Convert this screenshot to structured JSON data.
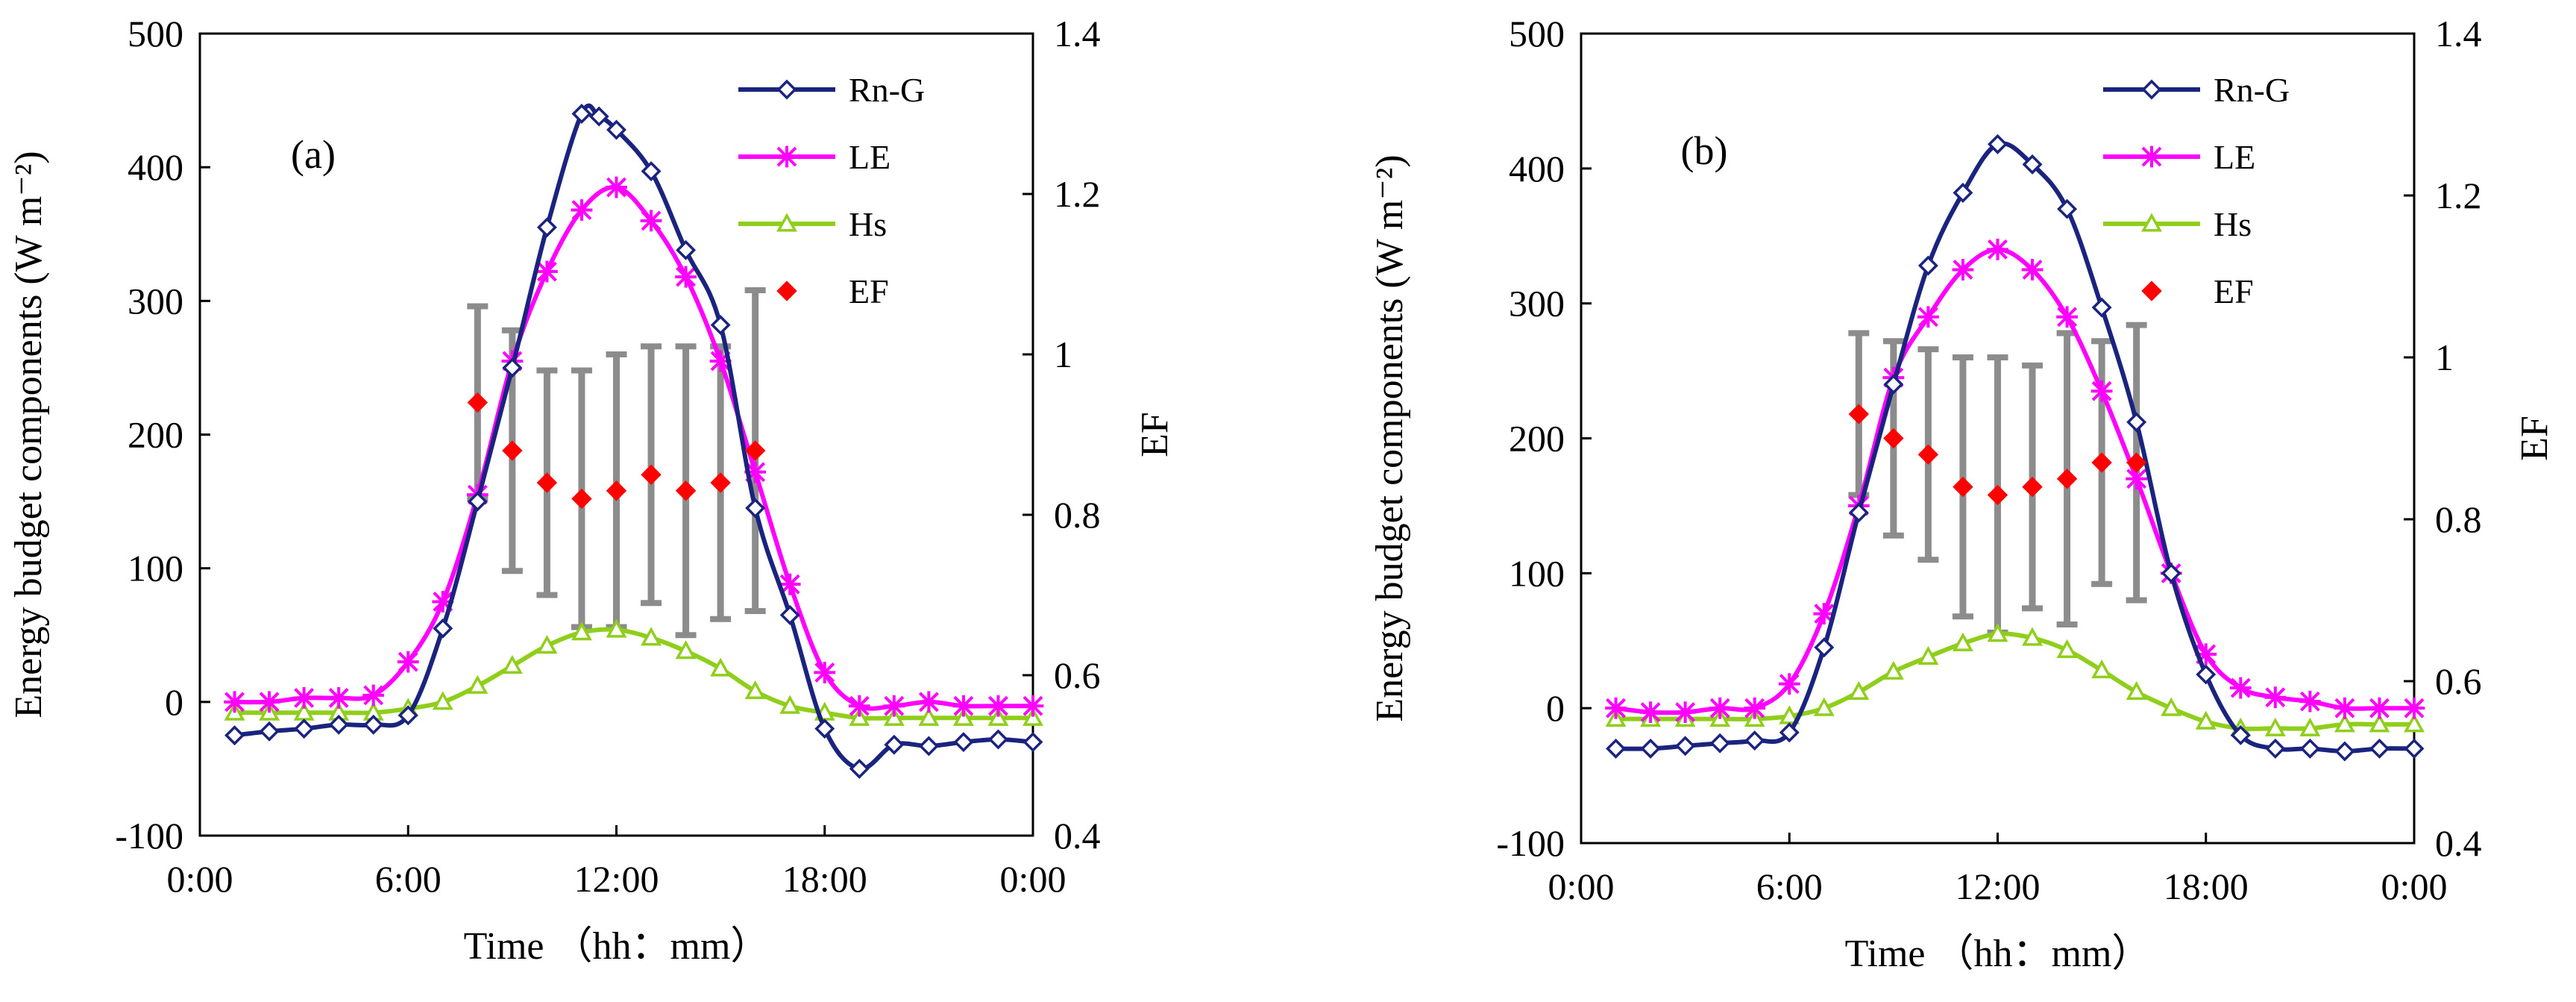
{
  "chart_data": [
    {
      "type": "line",
      "panel_label": "(a)",
      "xlabel": "Time （hh：mm）",
      "ylabel": "Energy budget components (W m⁻²)",
      "y2label": "EF",
      "xlim": [
        0,
        24
      ],
      "ylim": [
        -100,
        500
      ],
      "y2lim": [
        0.4,
        1.4
      ],
      "x_ticks": [
        "0:00",
        "6:00",
        "12:00",
        "18:00",
        "0:00"
      ],
      "y_ticks": [
        "-100",
        "0",
        "100",
        "200",
        "300",
        "400",
        "500"
      ],
      "y2_ticks": [
        "0.4",
        "0.6",
        "0.8",
        "1",
        "1.2",
        "1.4"
      ],
      "legend_position": "top-right",
      "series": [
        {
          "name": "Rn-G",
          "color": "#1a237e",
          "marker": "diamond-open",
          "x": [
            1,
            2,
            3,
            4,
            5,
            6,
            7,
            8,
            9,
            10,
            11,
            11.5,
            12,
            13,
            14,
            15,
            16,
            17,
            18,
            19,
            20,
            21,
            22,
            23,
            24
          ],
          "values": [
            -25,
            -22,
            -20,
            -17,
            -17,
            -10,
            55,
            150,
            250,
            355,
            440,
            438,
            428,
            397,
            338,
            282,
            145,
            65,
            -20,
            -50,
            -32,
            -33,
            -30,
            -28,
            -30
          ]
        },
        {
          "name": "LE",
          "color": "#ff00ff",
          "marker": "star",
          "x": [
            1,
            2,
            3,
            4,
            5,
            6,
            7,
            8,
            9,
            10,
            11,
            12,
            13,
            14,
            15,
            16,
            17,
            18,
            19,
            20,
            21,
            22,
            23,
            24
          ],
          "values": [
            0,
            0,
            3,
            3,
            5,
            30,
            75,
            155,
            255,
            322,
            368,
            385,
            360,
            318,
            255,
            172,
            88,
            22,
            -3,
            -3,
            0,
            -3,
            -3,
            -3
          ]
        },
        {
          "name": "Hs",
          "color": "#8fce1b",
          "marker": "triangle-open",
          "x": [
            1,
            2,
            3,
            4,
            5,
            6,
            7,
            8,
            9,
            10,
            11,
            12,
            13,
            14,
            15,
            16,
            17,
            18,
            19,
            20,
            21,
            22,
            23,
            24
          ],
          "values": [
            -8,
            -8,
            -8,
            -8,
            -8,
            -5,
            0,
            12,
            27,
            42,
            52,
            54,
            48,
            38,
            25,
            8,
            -3,
            -8,
            -12,
            -12,
            -12,
            -12,
            -12,
            -12
          ]
        },
        {
          "name": "EF",
          "color": "#ff0000",
          "marker": "diamond-filled",
          "axis": "right",
          "x": [
            8,
            9,
            10,
            11,
            12,
            13,
            14,
            15,
            16
          ],
          "values": [
            0.94,
            0.88,
            0.84,
            0.82,
            0.83,
            0.85,
            0.83,
            0.84,
            0.88
          ],
          "err": [
            0.12,
            0.15,
            0.14,
            0.16,
            0.17,
            0.16,
            0.18,
            0.17,
            0.2
          ]
        }
      ]
    },
    {
      "type": "line",
      "panel_label": "(b)",
      "xlabel": "Time （hh：mm）",
      "ylabel": "Energy budget components (W m⁻²)",
      "y2label": "EF",
      "xlim": [
        0,
        24
      ],
      "ylim": [
        -100,
        500
      ],
      "y2lim": [
        0.4,
        1.4
      ],
      "x_ticks": [
        "0:00",
        "6:00",
        "12:00",
        "18:00",
        "0:00"
      ],
      "y_ticks": [
        "-100",
        "0",
        "100",
        "200",
        "300",
        "400",
        "500"
      ],
      "y2_ticks": [
        "0.4",
        "0.6",
        "0.8",
        "1",
        "1.2",
        "1.4"
      ],
      "legend_position": "top-right",
      "series": [
        {
          "name": "Rn-G",
          "color": "#1a237e",
          "marker": "diamond-open",
          "x": [
            1,
            2,
            3,
            4,
            5,
            6,
            7,
            8,
            9,
            10,
            11,
            12,
            13,
            14,
            15,
            16,
            17,
            18,
            19,
            20,
            21,
            22,
            23,
            24
          ],
          "values": [
            -30,
            -30,
            -28,
            -26,
            -24,
            -18,
            45,
            145,
            240,
            328,
            382,
            418,
            403,
            370,
            297,
            212,
            100,
            25,
            -20,
            -30,
            -30,
            -32,
            -30,
            -30
          ]
        },
        {
          "name": "LE",
          "color": "#ff00ff",
          "marker": "star",
          "x": [
            1,
            2,
            3,
            4,
            5,
            6,
            7,
            8,
            9,
            10,
            11,
            12,
            13,
            14,
            15,
            16,
            17,
            18,
            19,
            20,
            21,
            22,
            23,
            24
          ],
          "values": [
            0,
            -3,
            -3,
            0,
            0,
            18,
            70,
            150,
            245,
            290,
            325,
            340,
            325,
            290,
            235,
            170,
            100,
            40,
            15,
            8,
            5,
            0,
            0,
            0
          ]
        },
        {
          "name": "Hs",
          "color": "#8fce1b",
          "marker": "triangle-open",
          "x": [
            1,
            2,
            3,
            4,
            5,
            6,
            7,
            8,
            9,
            10,
            11,
            12,
            13,
            14,
            15,
            16,
            17,
            18,
            19,
            20,
            21,
            22,
            23,
            24
          ],
          "values": [
            -8,
            -8,
            -8,
            -8,
            -8,
            -6,
            0,
            12,
            27,
            38,
            48,
            55,
            52,
            43,
            28,
            12,
            0,
            -10,
            -15,
            -15,
            -15,
            -12,
            -12,
            -12
          ]
        },
        {
          "name": "EF",
          "color": "#ff0000",
          "marker": "diamond-filled",
          "axis": "right",
          "x": [
            8,
            9,
            10,
            11,
            12,
            13,
            14,
            15,
            16
          ],
          "values": [
            0.93,
            0.9,
            0.88,
            0.84,
            0.83,
            0.84,
            0.85,
            0.87,
            0.87
          ],
          "err": [
            0.1,
            0.12,
            0.13,
            0.16,
            0.17,
            0.15,
            0.18,
            0.15,
            0.17
          ]
        }
      ]
    }
  ]
}
